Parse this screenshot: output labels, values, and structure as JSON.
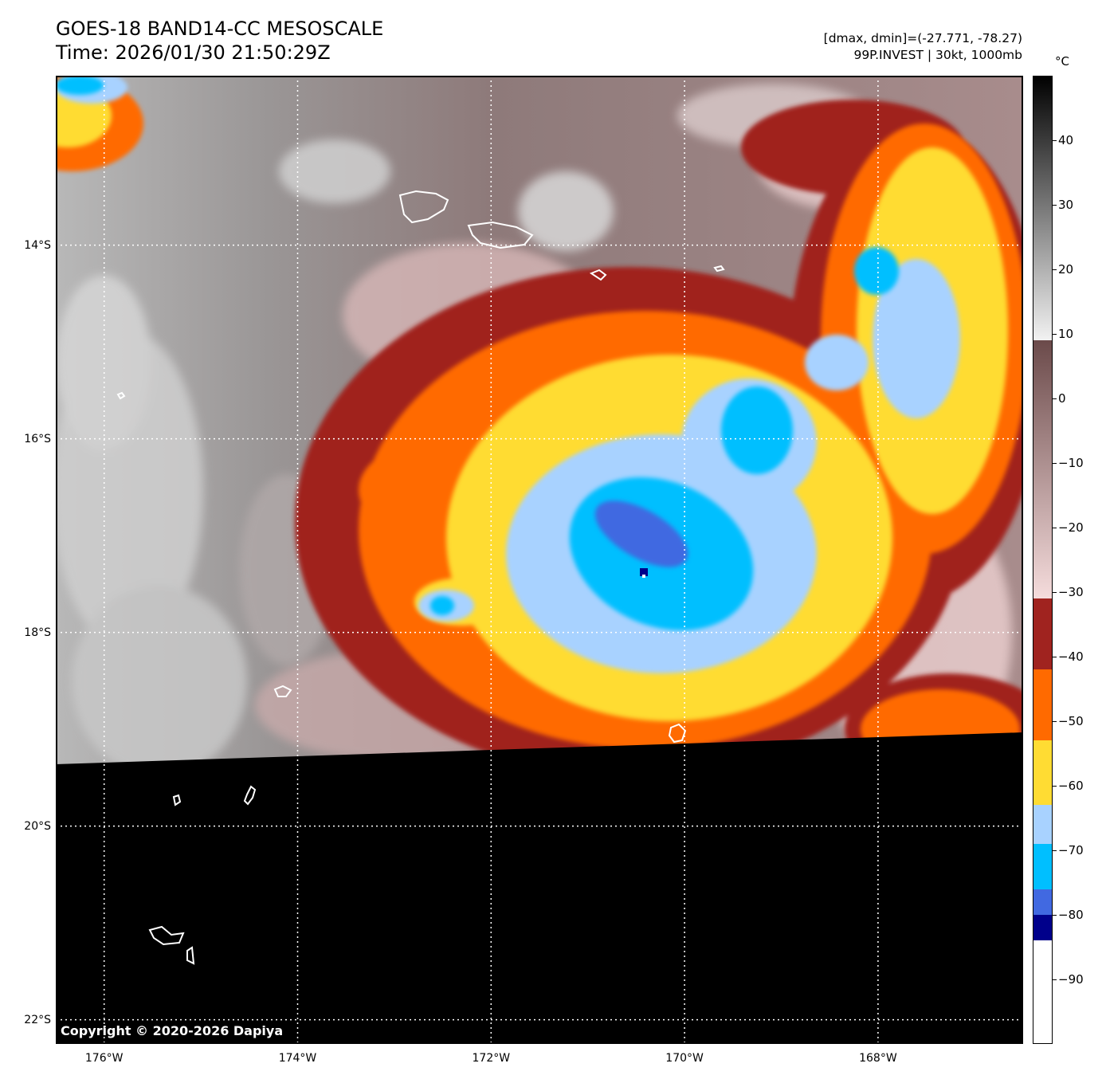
{
  "title": {
    "line1": "GOES-18 BAND14-CC MESOSCALE",
    "line2": "Time: 2026/01/30 21:50:29Z"
  },
  "info": {
    "range": "[dmax, dmin]=(-27.771, -78.27)",
    "storm": "99P.INVEST | 30kt, 1000mb"
  },
  "copyright": "Copyright © 2020-2026 Dapiya",
  "map": {
    "lon_range": [
      -176.5,
      -166.5
    ],
    "lat_range": [
      -22.25,
      -12.25
    ],
    "lat_ticks": [
      {
        "value": -14,
        "label": "14°S"
      },
      {
        "value": -16,
        "label": "16°S"
      },
      {
        "value": -18,
        "label": "18°S"
      },
      {
        "value": -20,
        "label": "20°S"
      },
      {
        "value": -22,
        "label": "22°S"
      }
    ],
    "lon_ticks": [
      {
        "value": -176,
        "label": "176°W"
      },
      {
        "value": -174,
        "label": "174°W"
      },
      {
        "value": -172,
        "label": "172°W"
      },
      {
        "value": -170,
        "label": "170°W"
      },
      {
        "value": -168,
        "label": "168°W"
      }
    ],
    "gridlines": "dotted",
    "storm_center": {
      "lon": -170.2,
      "lat": -17.5
    },
    "no_data_color": "#000000"
  },
  "colorbar": {
    "unit": "°C",
    "min": -100,
    "max": 50,
    "ticks": [
      {
        "value": 40,
        "label": "40"
      },
      {
        "value": 30,
        "label": "30"
      },
      {
        "value": 20,
        "label": "20"
      },
      {
        "value": 10,
        "label": "10"
      },
      {
        "value": 0,
        "label": "0"
      },
      {
        "value": -10,
        "label": "−10"
      },
      {
        "value": -20,
        "label": "−20"
      },
      {
        "value": -30,
        "label": "−30"
      },
      {
        "value": -40,
        "label": "−40"
      },
      {
        "value": -50,
        "label": "−50"
      },
      {
        "value": -60,
        "label": "−60"
      },
      {
        "value": -70,
        "label": "−70"
      },
      {
        "value": -80,
        "label": "−80"
      },
      {
        "value": -90,
        "label": "−90"
      }
    ],
    "segments": [
      {
        "from": 9,
        "to": 50,
        "colors": [
          "#f2f2f2",
          "#000000"
        ]
      },
      {
        "from": -31,
        "to": 9,
        "colors": [
          "#f5dcdc",
          "#6b4a4a"
        ]
      },
      {
        "from": -42,
        "to": -31,
        "colors": [
          "#a0231f"
        ]
      },
      {
        "from": -53,
        "to": -42,
        "colors": [
          "#ff6a00"
        ]
      },
      {
        "from": -63,
        "to": -53,
        "colors": [
          "#ffdc33"
        ]
      },
      {
        "from": -69,
        "to": -63,
        "colors": [
          "#a8d2ff"
        ]
      },
      {
        "from": -76,
        "to": -69,
        "colors": [
          "#00bfff"
        ]
      },
      {
        "from": -80,
        "to": -76,
        "colors": [
          "#4169e1"
        ]
      },
      {
        "from": -84,
        "to": -80,
        "colors": [
          "#00008b"
        ]
      },
      {
        "from": -100,
        "to": -84,
        "colors": [
          "#ffffff"
        ]
      }
    ]
  },
  "palette": {
    "warm_gray": "#8c8888",
    "light_pink": "#d8b8b8",
    "dark_red": "#a0231f",
    "orange": "#ff6a00",
    "yellow": "#ffdc33",
    "light_blue": "#a8d2ff",
    "cyan": "#00bfff",
    "royal_blue": "#4169e1",
    "navy": "#00008b"
  }
}
